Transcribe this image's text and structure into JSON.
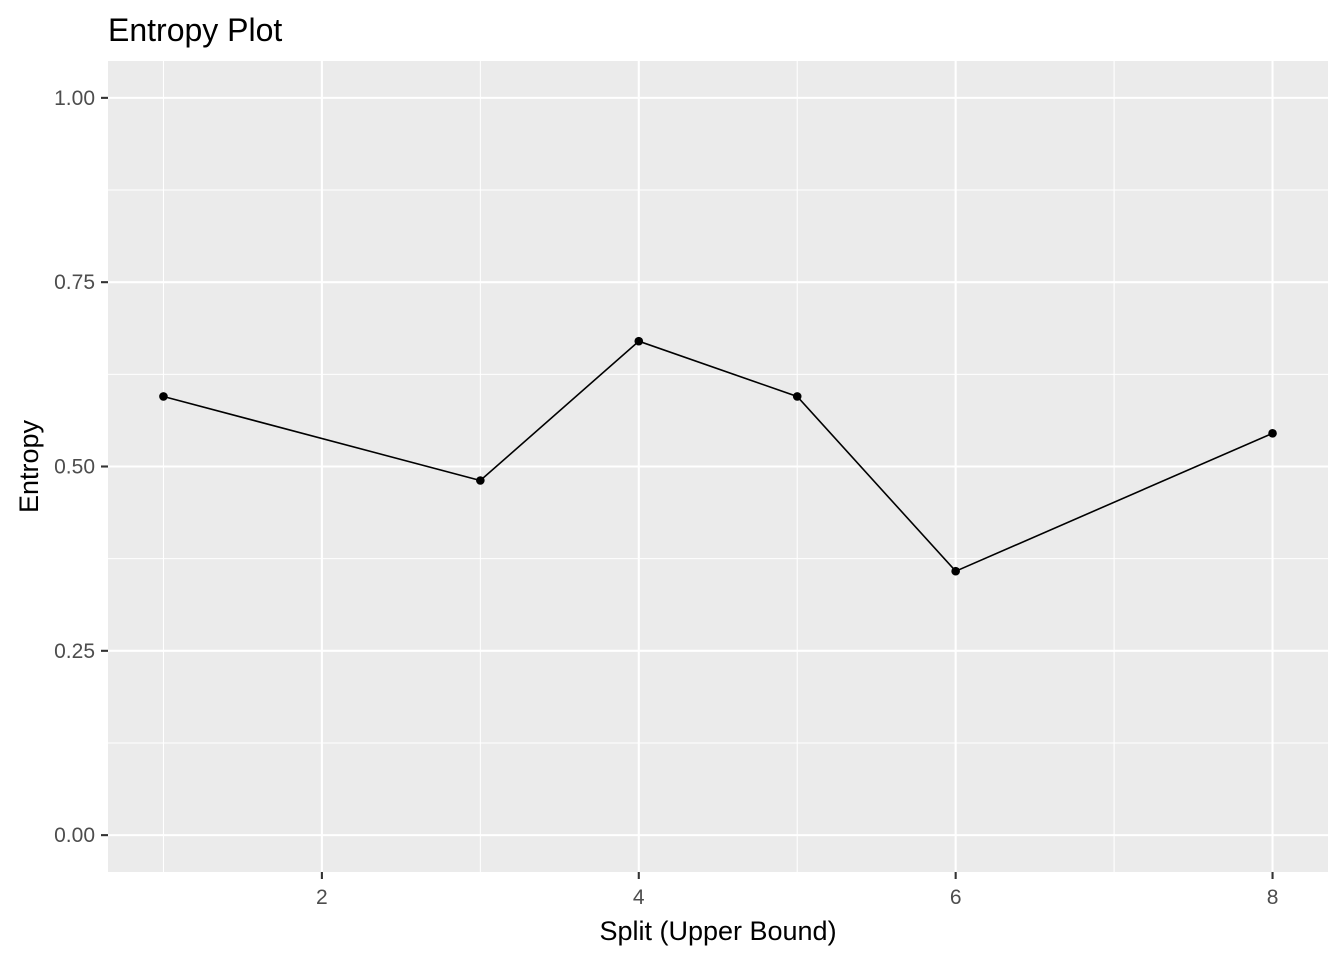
{
  "chart_data": {
    "type": "line",
    "title": "Entropy Plot",
    "xlabel": "Split (Upper Bound)",
    "ylabel": "Entropy",
    "x": [
      1,
      3,
      4,
      5,
      6,
      8
    ],
    "y": [
      0.595,
      0.481,
      0.67,
      0.595,
      0.358,
      0.545
    ],
    "xlim": [
      0.65,
      8.35
    ],
    "ylim": [
      -0.05,
      1.05
    ],
    "x_ticks": [
      2,
      4,
      6,
      8
    ],
    "x_tick_labels": [
      "2",
      "4",
      "6",
      "8"
    ],
    "x_minor_ticks": [
      1,
      3,
      5,
      7
    ],
    "y_ticks": [
      0,
      0.25,
      0.5,
      0.75,
      1
    ],
    "y_tick_labels": [
      "0.00",
      "0.25",
      "0.50",
      "0.75",
      "1.00"
    ],
    "y_minor_ticks": [
      0.125,
      0.375,
      0.625,
      0.875
    ],
    "grid": true,
    "legend": "none",
    "colors": {
      "panel": "#ebebeb",
      "grid": "#ffffff",
      "series": "#000000",
      "tick_text": "#4d4d4d"
    }
  }
}
